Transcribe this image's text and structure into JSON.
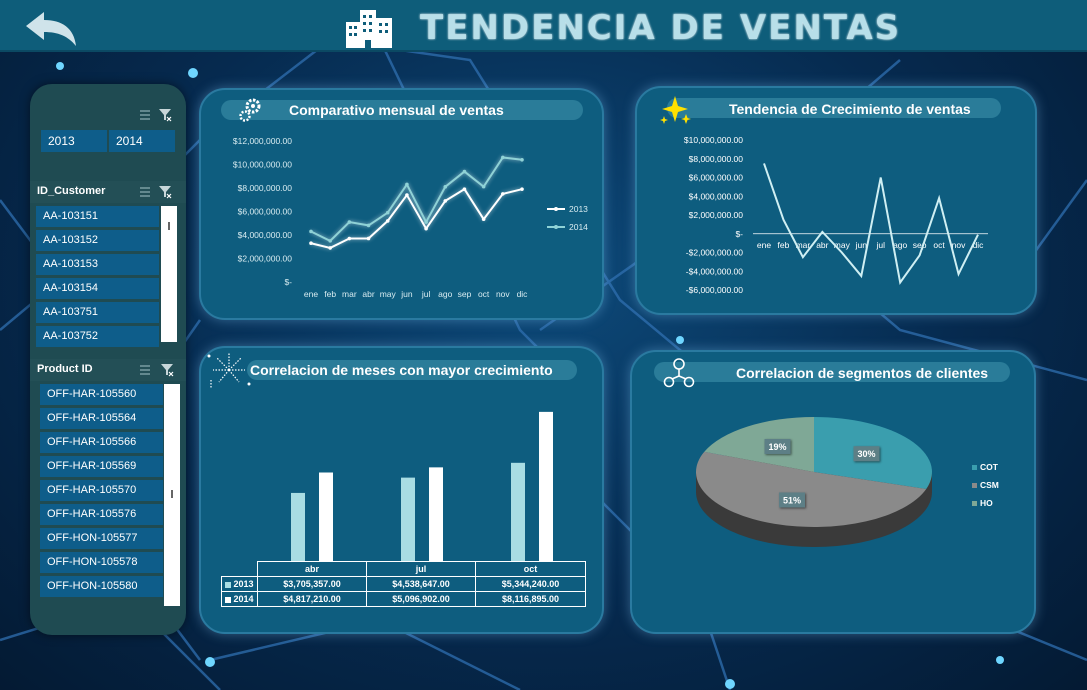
{
  "header": {
    "title": "TENDENCIA DE VENTAS"
  },
  "slicers": {
    "year": {
      "options": [
        "2013",
        "2014"
      ]
    },
    "customer": {
      "label": "ID_Customer",
      "items": [
        "AA-103151",
        "AA-103152",
        "AA-103153",
        "AA-103154",
        "AA-103751",
        "AA-103752"
      ]
    },
    "product": {
      "label": "Product ID",
      "items": [
        "OFF-HAR-105560",
        "OFF-HAR-105564",
        "OFF-HAR-105566",
        "OFF-HAR-105569",
        "OFF-HAR-105570",
        "OFF-HAR-105576",
        "OFF-HON-105577",
        "OFF-HON-105578",
        "OFF-HON-105580"
      ]
    }
  },
  "colors": {
    "series2013": "#ffffff",
    "series2014": "#8fd2d6",
    "bar2013": "#a9dde3",
    "bar2014": "#ffffff",
    "cot": "#3a9eae",
    "csm": "#8a8a8a",
    "ho": "#7fa896"
  },
  "chart_data": [
    {
      "type": "line",
      "title": "Comparativo mensual de ventas",
      "categories": [
        "ene",
        "feb",
        "mar",
        "abr",
        "may",
        "jun",
        "jul",
        "ago",
        "sep",
        "oct",
        "nov",
        "dic"
      ],
      "series": [
        {
          "name": "2013",
          "values": [
            3300000,
            2900000,
            3700000,
            3705357,
            5200000,
            7400000,
            4538647,
            6900000,
            7900000,
            5344240,
            7500000,
            7900000
          ]
        },
        {
          "name": "2014",
          "values": [
            4300000,
            3500000,
            5100000,
            4817210,
            5900000,
            8300000,
            5096902,
            8100000,
            9400000,
            8116895,
            10600000,
            10400000
          ]
        }
      ],
      "y_ticks": [
        "$-",
        "$2,000,000.00",
        "$4,000,000.00",
        "$6,000,000.00",
        "$8,000,000.00",
        "$10,000,000.00",
        "$12,000,000.00"
      ],
      "ylim": [
        0,
        12000000
      ],
      "legend": "right"
    },
    {
      "type": "line",
      "title": "Tendencia  de Crecimiento de  ventas",
      "categories": [
        "ene",
        "feb",
        "mar",
        "abr",
        "may",
        "jun",
        "jul",
        "ago",
        "sep",
        "oct",
        "nov",
        "dic"
      ],
      "series": [
        {
          "values": [
            7500000,
            1500000,
            -2500000,
            200000,
            -2000000,
            -4500000,
            6000000,
            -5200000,
            -2300000,
            3800000,
            -4300000,
            -100000
          ]
        }
      ],
      "y_ticks": [
        "-$6,000,000.00",
        "-$4,000,000.00",
        "-$2,000,000.00",
        "$-",
        "$2,000,000.00",
        "$4,000,000.00",
        "$6,000,000.00",
        "$8,000,000.00",
        "$10,000,000.00"
      ],
      "ylim": [
        -6000000,
        10000000
      ]
    },
    {
      "type": "bar",
      "title": "Correlacion de meses con mayor crecimiento",
      "categories": [
        "abr",
        "jul",
        "oct"
      ],
      "series": [
        {
          "name": "2013",
          "values": [
            3705357,
            4538647,
            5344240
          ],
          "labels": [
            "$3,705,357.00",
            "$4,538,647.00",
            "$5,344,240.00"
          ]
        },
        {
          "name": "2014",
          "values": [
            4817210,
            5096902,
            8116895
          ],
          "labels": [
            "$4,817,210.00",
            "$5,096,902.00",
            "$8,116,895.00"
          ]
        }
      ],
      "ylim": [
        0,
        8600000
      ]
    },
    {
      "type": "pie",
      "title": "Correlacion de segmentos de clientes",
      "slices": [
        {
          "name": "COT",
          "value": 30,
          "label": "30%"
        },
        {
          "name": "CSM",
          "value": 51,
          "label": "51%"
        },
        {
          "name": "HO",
          "value": 19,
          "label": "19%"
        }
      ],
      "legend": "right"
    }
  ]
}
